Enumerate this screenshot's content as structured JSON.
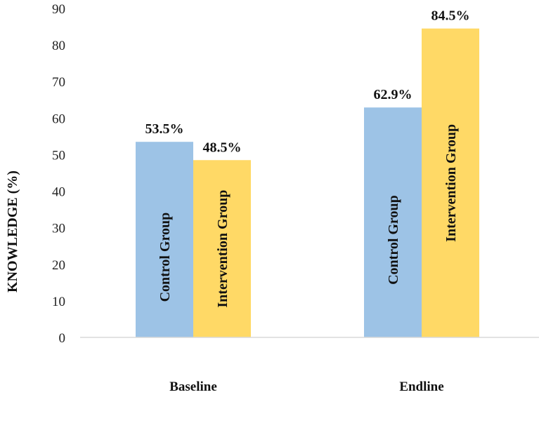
{
  "chart_data": {
    "type": "bar",
    "title": "",
    "xlabel": "",
    "ylabel": "KNOWLEDGE (%)",
    "ylim": [
      0,
      90
    ],
    "yticks": [
      "0",
      "10",
      "20",
      "30",
      "40",
      "50",
      "60",
      "70",
      "80",
      "90"
    ],
    "grid": false,
    "legend": "none (series names shown inside bars)",
    "categories": [
      "Baseline",
      "Endline"
    ],
    "series": [
      {
        "name": "Control Group",
        "values": [
          53.5,
          62.9
        ],
        "labels": [
          "53.5%",
          "62.9%"
        ],
        "color": "#9DC3E6"
      },
      {
        "name": "Intervention Group",
        "values": [
          48.5,
          84.5
        ],
        "labels": [
          "48.5%",
          "84.5%"
        ],
        "color": "#FFD966"
      }
    ]
  }
}
